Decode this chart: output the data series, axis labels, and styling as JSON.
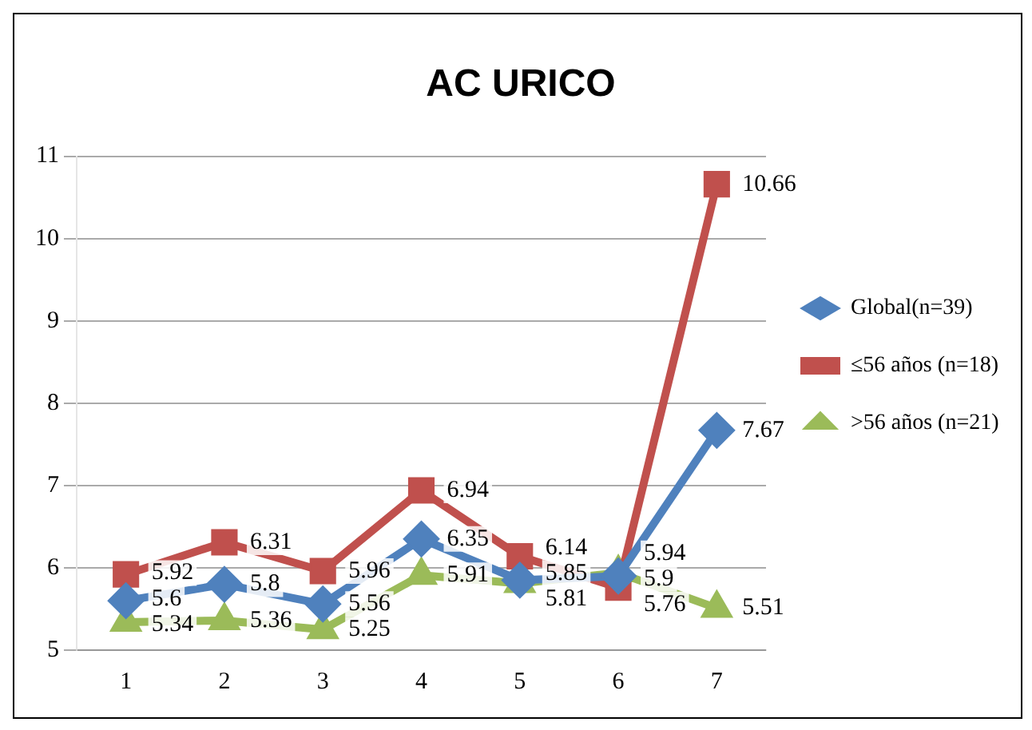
{
  "chart_data": {
    "type": "line",
    "title": "AC URICO",
    "categories": [
      "1",
      "2",
      "3",
      "4",
      "5",
      "6",
      "7"
    ],
    "series": [
      {
        "name": "Global(n=39)",
        "color": "#4f81bd",
        "marker": "diamond",
        "values": [
          5.6,
          5.8,
          5.56,
          6.35,
          5.85,
          5.9,
          7.67
        ]
      },
      {
        "name": "≤56 años (n=18)",
        "color": "#c0504d",
        "marker": "square",
        "values": [
          5.92,
          6.31,
          5.96,
          6.94,
          6.14,
          5.76,
          10.66
        ]
      },
      {
        "name": ">56 años (n=21)",
        "color": "#9bbb59",
        "marker": "triangle",
        "values": [
          5.34,
          5.36,
          5.25,
          5.91,
          5.81,
          5.94,
          5.51
        ]
      }
    ],
    "ylim": [
      5,
      11
    ],
    "yticks": [
      5,
      6,
      7,
      8,
      9,
      10,
      11
    ],
    "grid": "y",
    "legend": "right",
    "data_labels": true
  }
}
